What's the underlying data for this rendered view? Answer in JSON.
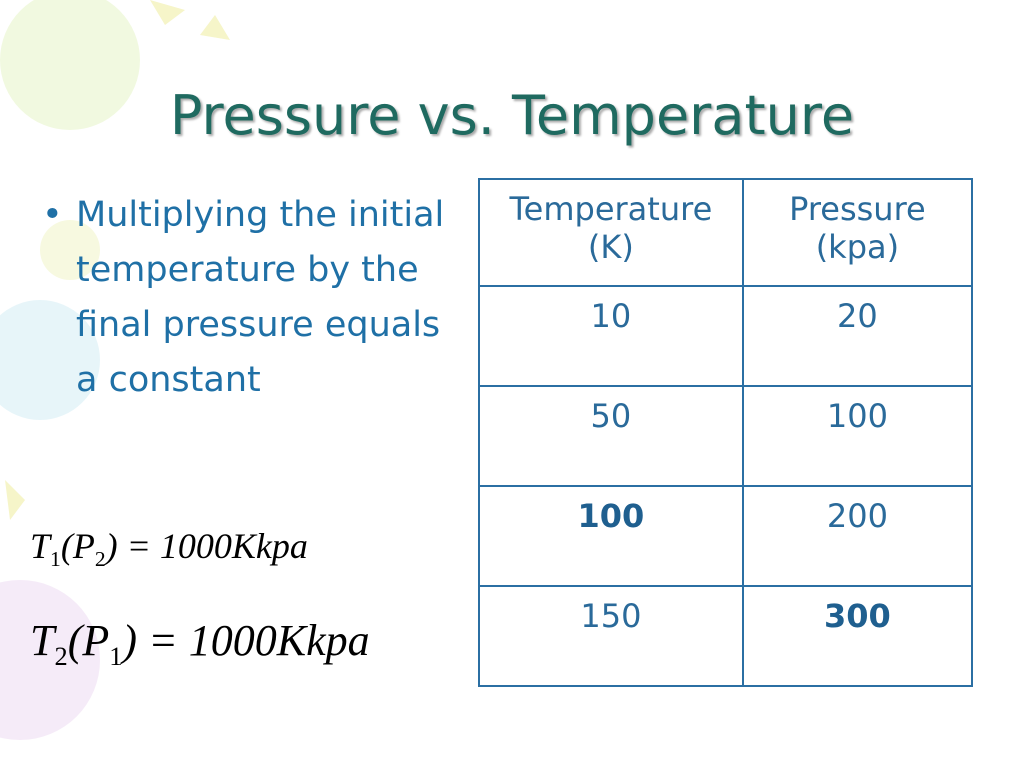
{
  "title": "Pressure vs. Temperature",
  "bullets": [
    "Multiplying the initial temperature by the final pressure equals a constant"
  ],
  "equations": [
    [
      {
        "text": "T",
        "sub": "1"
      },
      {
        "text": "(P",
        "sub": "2"
      },
      {
        "text": ") = 1000Kkpa"
      }
    ],
    [
      {
        "text": "T",
        "sub": "2"
      },
      {
        "text": "(P",
        "sub": "1"
      },
      {
        "text": ") = 1000Kkpa"
      }
    ]
  ],
  "table": {
    "header": [
      "Temperature (K)",
      "Pressure (kpa)"
    ],
    "rows": [
      [
        10,
        20
      ],
      [
        50,
        100
      ],
      [
        {
          "value": 100,
          "bold": true
        },
        200
      ],
      [
        150,
        {
          "value": 300,
          "bold": true
        }
      ]
    ]
  }
}
